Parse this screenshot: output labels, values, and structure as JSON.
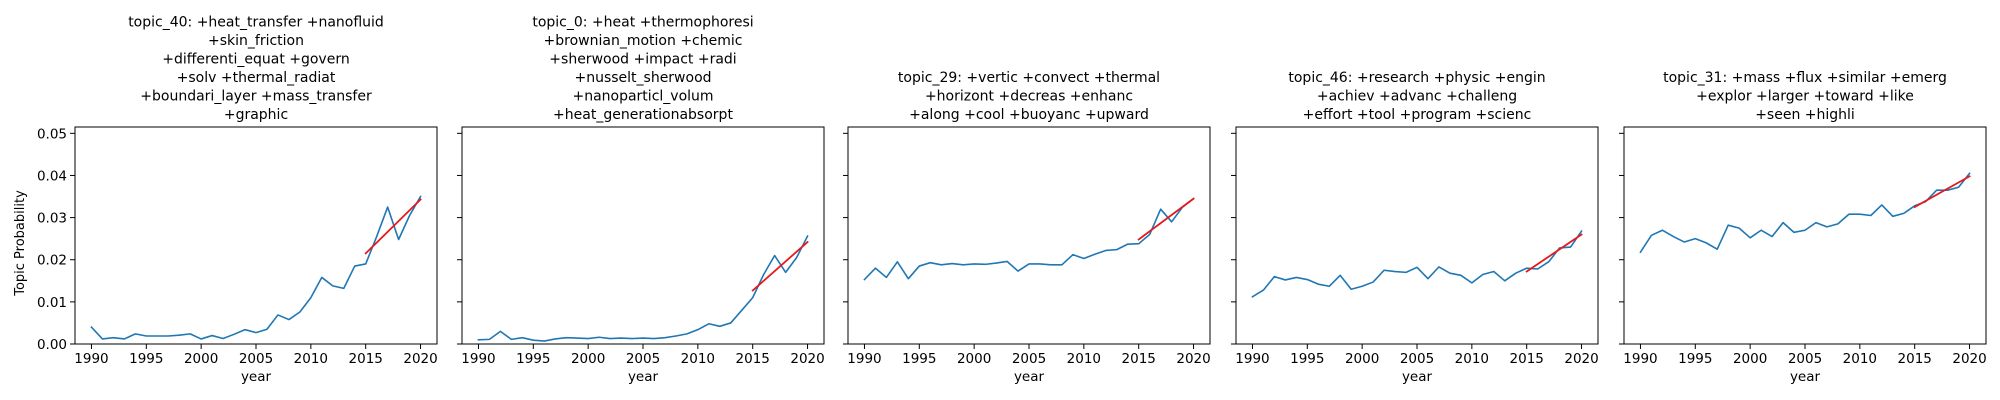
{
  "figure": {
    "shared_ylabel": "Topic Probability"
  },
  "chart_data": [
    {
      "type": "line",
      "title": [
        "topic_40: +heat_transfer +nanofluid",
        "+skin_friction",
        "+differenti_equat +govern",
        "+solv +thermal_radiat",
        "+boundari_layer +mass_transfer",
        "+graphic"
      ],
      "xlabel": "year",
      "ylabel": "Topic Probability",
      "xlim": [
        1988.5,
        2021.5
      ],
      "ylim": [
        0,
        0.0515
      ],
      "x_ticks": [
        1990,
        1995,
        2000,
        2005,
        2010,
        2015,
        2020
      ],
      "y_ticks": [
        0.0,
        0.01,
        0.02,
        0.03,
        0.04,
        0.05
      ],
      "y_tick_labels": [
        "0.00",
        "0.01",
        "0.02",
        "0.03",
        "0.04",
        "0.05"
      ],
      "x": [
        1990,
        1991,
        1992,
        1993,
        1994,
        1995,
        1996,
        1997,
        1998,
        1999,
        2000,
        2001,
        2002,
        2003,
        2004,
        2005,
        2006,
        2007,
        2008,
        2009,
        2010,
        2011,
        2012,
        2013,
        2014,
        2015,
        2016,
        2017,
        2018,
        2019,
        2020
      ],
      "series": [
        {
          "values": [
            0.004,
            0.0012,
            0.0015,
            0.0012,
            0.0024,
            0.0019,
            0.0019,
            0.0019,
            0.0021,
            0.0024,
            0.0012,
            0.002,
            0.0013,
            0.0023,
            0.0034,
            0.0027,
            0.0035,
            0.0069,
            0.0058,
            0.0076,
            0.011,
            0.0158,
            0.0138,
            0.0132,
            0.0185,
            0.019,
            0.0255,
            0.0325,
            0.0248,
            0.0305,
            0.035
          ],
          "color": "#1f77b4"
        },
        {
          "x": [
            2015,
            2020
          ],
          "values": [
            0.0215,
            0.0343
          ],
          "color": "#e41a1c"
        }
      ]
    },
    {
      "type": "line",
      "title": [
        "topic_0: +heat +thermophoresi",
        "+brownian_motion +chemic",
        "+sherwood +impact +radi",
        "+nusselt_sherwood",
        "+nanoparticl_volum",
        "+heat_generationabsorpt"
      ],
      "xlabel": "year",
      "ylabel": "",
      "xlim": [
        1988.5,
        2021.5
      ],
      "ylim": [
        0,
        0.0515
      ],
      "x_ticks": [
        1990,
        1995,
        2000,
        2005,
        2010,
        2015,
        2020
      ],
      "y_ticks": [
        0.0,
        0.01,
        0.02,
        0.03,
        0.04,
        0.05
      ],
      "y_tick_labels": [
        "",
        "",
        "",
        "",
        "",
        ""
      ],
      "x": [
        1990,
        1991,
        1992,
        1993,
        1994,
        1995,
        1996,
        1997,
        1998,
        1999,
        2000,
        2001,
        2002,
        2003,
        2004,
        2005,
        2006,
        2007,
        2008,
        2009,
        2010,
        2011,
        2012,
        2013,
        2014,
        2015,
        2016,
        2017,
        2018,
        2019,
        2020
      ],
      "series": [
        {
          "values": [
            0.001,
            0.0011,
            0.003,
            0.0011,
            0.0015,
            0.0009,
            0.0007,
            0.0012,
            0.0015,
            0.0014,
            0.0013,
            0.0016,
            0.0013,
            0.0014,
            0.0013,
            0.0014,
            0.0013,
            0.0015,
            0.0019,
            0.0024,
            0.0034,
            0.0048,
            0.0042,
            0.005,
            0.008,
            0.011,
            0.0165,
            0.021,
            0.017,
            0.0205,
            0.0256
          ],
          "color": "#1f77b4"
        },
        {
          "x": [
            2015,
            2020
          ],
          "values": [
            0.0127,
            0.0242
          ],
          "color": "#e41a1c"
        }
      ]
    },
    {
      "type": "line",
      "title": [
        "topic_29: +vertic +convect +thermal",
        "+horizont +decreas +enhanc",
        "+along +cool +buoyanc +upward"
      ],
      "xlabel": "year",
      "ylabel": "",
      "xlim": [
        1988.5,
        2021.5
      ],
      "ylim": [
        0,
        0.0515
      ],
      "x_ticks": [
        1990,
        1995,
        2000,
        2005,
        2010,
        2015,
        2020
      ],
      "y_ticks": [
        0.0,
        0.01,
        0.02,
        0.03,
        0.04,
        0.05
      ],
      "y_tick_labels": [
        "",
        "",
        "",
        "",
        "",
        ""
      ],
      "x": [
        1990,
        1991,
        1992,
        1993,
        1994,
        1995,
        1996,
        1997,
        1998,
        1999,
        2000,
        2001,
        2002,
        2003,
        2004,
        2005,
        2006,
        2007,
        2008,
        2009,
        2010,
        2011,
        2012,
        2013,
        2014,
        2015,
        2016,
        2017,
        2018,
        2019,
        2020
      ],
      "series": [
        {
          "values": [
            0.0153,
            0.018,
            0.0158,
            0.0195,
            0.0155,
            0.0185,
            0.0193,
            0.0188,
            0.0191,
            0.0188,
            0.019,
            0.0189,
            0.0192,
            0.0196,
            0.0173,
            0.019,
            0.019,
            0.0188,
            0.0188,
            0.0212,
            0.0203,
            0.0213,
            0.0222,
            0.0224,
            0.0237,
            0.0238,
            0.026,
            0.032,
            0.029,
            0.0325,
            0.0345
          ],
          "color": "#1f77b4"
        },
        {
          "x": [
            2015,
            2020
          ],
          "values": [
            0.0248,
            0.0345
          ],
          "color": "#e41a1c"
        }
      ]
    },
    {
      "type": "line",
      "title": [
        "topic_46: +research +physic +engin",
        "+achiev +advanc +challeng",
        "+effort +tool +program +scienc"
      ],
      "xlabel": "year",
      "ylabel": "",
      "xlim": [
        1988.5,
        2021.5
      ],
      "ylim": [
        0,
        0.0515
      ],
      "x_ticks": [
        1990,
        1995,
        2000,
        2005,
        2010,
        2015,
        2020
      ],
      "y_ticks": [
        0.0,
        0.01,
        0.02,
        0.03,
        0.04,
        0.05
      ],
      "y_tick_labels": [
        "",
        "",
        "",
        "",
        "",
        ""
      ],
      "x": [
        1990,
        1991,
        1992,
        1993,
        1994,
        1995,
        1996,
        1997,
        1998,
        1999,
        2000,
        2001,
        2002,
        2003,
        2004,
        2005,
        2006,
        2007,
        2008,
        2009,
        2010,
        2011,
        2012,
        2013,
        2014,
        2015,
        2016,
        2017,
        2018,
        2019,
        2020
      ],
      "series": [
        {
          "values": [
            0.0112,
            0.0128,
            0.016,
            0.0152,
            0.0158,
            0.0153,
            0.0142,
            0.0137,
            0.0163,
            0.013,
            0.0137,
            0.0147,
            0.0175,
            0.0172,
            0.017,
            0.0182,
            0.0155,
            0.0183,
            0.0168,
            0.0163,
            0.0145,
            0.0165,
            0.0172,
            0.015,
            0.0168,
            0.018,
            0.0178,
            0.0195,
            0.0228,
            0.023,
            0.0268
          ],
          "color": "#1f77b4"
        },
        {
          "x": [
            2015,
            2020
          ],
          "values": [
            0.0172,
            0.026
          ],
          "color": "#e41a1c"
        }
      ]
    },
    {
      "type": "line",
      "title": [
        "topic_31: +mass +flux +similar +emerg",
        "+explor +larger +toward +like",
        "+seen +highli"
      ],
      "xlabel": "year",
      "ylabel": "",
      "xlim": [
        1988.5,
        2021.5
      ],
      "ylim": [
        0,
        0.0515
      ],
      "x_ticks": [
        1990,
        1995,
        2000,
        2005,
        2010,
        2015,
        2020
      ],
      "y_ticks": [
        0.0,
        0.01,
        0.02,
        0.03,
        0.04,
        0.05
      ],
      "y_tick_labels": [
        "",
        "",
        "",
        "",
        "",
        ""
      ],
      "x": [
        1990,
        1991,
        1992,
        1993,
        1994,
        1995,
        1996,
        1997,
        1998,
        1999,
        2000,
        2001,
        2002,
        2003,
        2004,
        2005,
        2006,
        2007,
        2008,
        2009,
        2010,
        2011,
        2012,
        2013,
        2014,
        2015,
        2016,
        2017,
        2018,
        2019,
        2020
      ],
      "series": [
        {
          "values": [
            0.0218,
            0.0258,
            0.027,
            0.0255,
            0.0242,
            0.025,
            0.024,
            0.0225,
            0.0282,
            0.0275,
            0.0252,
            0.027,
            0.0255,
            0.0288,
            0.0265,
            0.027,
            0.0288,
            0.0278,
            0.0285,
            0.0308,
            0.0308,
            0.0305,
            0.033,
            0.0303,
            0.031,
            0.0328,
            0.0338,
            0.0365,
            0.0365,
            0.0372,
            0.0405
          ],
          "color": "#1f77b4"
        },
        {
          "x": [
            2015,
            2020
          ],
          "values": [
            0.0325,
            0.0398
          ],
          "color": "#e41a1c"
        }
      ]
    }
  ]
}
